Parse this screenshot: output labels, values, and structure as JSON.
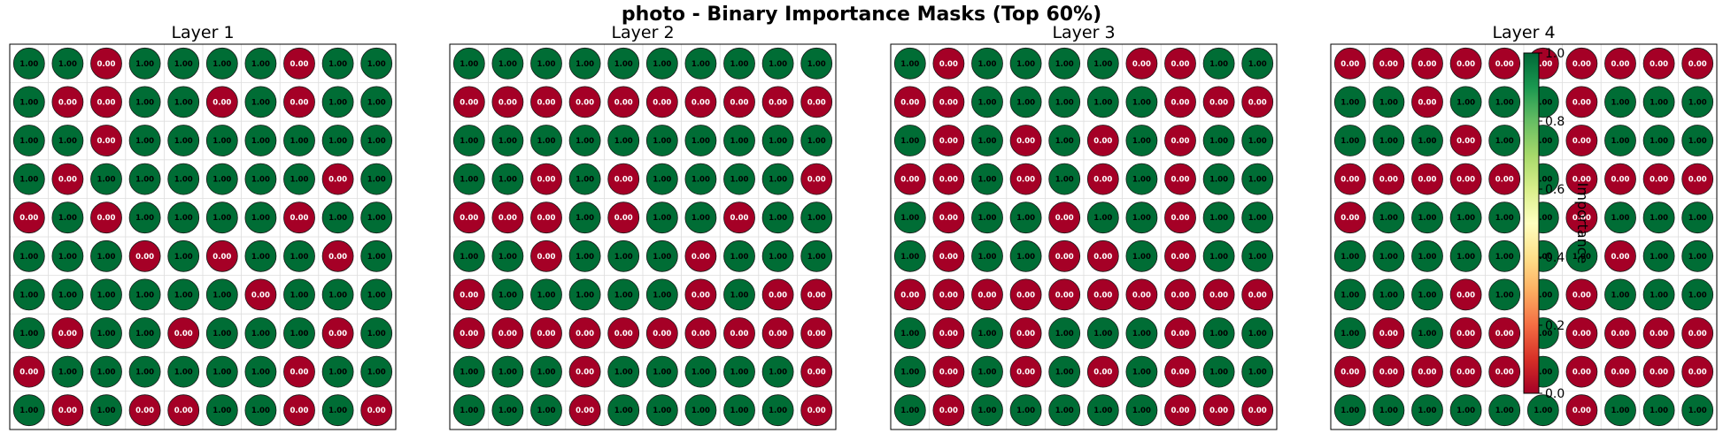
{
  "figure": {
    "title": "photo - Binary Importance Masks (Top 60%)"
  },
  "colors": {
    "important": "#006d35",
    "unimportant": "#a50026",
    "grid": "#dddddd",
    "frame": "#000000"
  },
  "colorbar": {
    "label": "Importance",
    "ticks": [
      "0.0",
      "0.2",
      "0.4",
      "0.6",
      "0.8",
      "1.0"
    ],
    "colormap": "RdYlGn",
    "range": [
      0,
      1
    ]
  },
  "chart_data": [
    {
      "type": "heatmap",
      "title": "Layer 1",
      "value_format": "0.00",
      "grid": [
        [
          1,
          1,
          0,
          1,
          1,
          1,
          1,
          0,
          1,
          1
        ],
        [
          1,
          0,
          0,
          1,
          1,
          0,
          1,
          0,
          1,
          1
        ],
        [
          1,
          1,
          0,
          1,
          1,
          1,
          1,
          1,
          1,
          1
        ],
        [
          1,
          0,
          1,
          1,
          1,
          1,
          1,
          1,
          0,
          1
        ],
        [
          0,
          1,
          0,
          1,
          1,
          1,
          1,
          0,
          1,
          1
        ],
        [
          1,
          1,
          1,
          0,
          1,
          0,
          1,
          1,
          0,
          1
        ],
        [
          1,
          1,
          1,
          1,
          1,
          1,
          0,
          1,
          1,
          1
        ],
        [
          1,
          0,
          1,
          1,
          0,
          1,
          1,
          1,
          0,
          1
        ],
        [
          0,
          1,
          1,
          1,
          1,
          1,
          1,
          0,
          1,
          1
        ],
        [
          1,
          0,
          1,
          0,
          0,
          1,
          1,
          0,
          1,
          0
        ]
      ]
    },
    {
      "type": "heatmap",
      "title": "Layer 2",
      "value_format": "0.00",
      "grid": [
        [
          1,
          1,
          1,
          1,
          1,
          1,
          1,
          1,
          1,
          1
        ],
        [
          0,
          0,
          0,
          0,
          0,
          0,
          0,
          0,
          0,
          0
        ],
        [
          1,
          1,
          1,
          1,
          1,
          1,
          1,
          1,
          1,
          1
        ],
        [
          1,
          1,
          0,
          1,
          0,
          1,
          1,
          1,
          1,
          0
        ],
        [
          0,
          0,
          0,
          1,
          0,
          1,
          1,
          0,
          1,
          1
        ],
        [
          1,
          1,
          0,
          1,
          1,
          1,
          0,
          1,
          1,
          1
        ],
        [
          0,
          1,
          1,
          1,
          1,
          1,
          0,
          1,
          0,
          0
        ],
        [
          0,
          0,
          0,
          0,
          0,
          0,
          0,
          0,
          0,
          0
        ],
        [
          1,
          1,
          1,
          0,
          1,
          1,
          1,
          1,
          1,
          0
        ],
        [
          1,
          1,
          1,
          0,
          1,
          1,
          1,
          1,
          1,
          0
        ]
      ]
    },
    {
      "type": "heatmap",
      "title": "Layer 3",
      "value_format": "0.00",
      "grid": [
        [
          1,
          0,
          1,
          1,
          1,
          1,
          0,
          0,
          1,
          1
        ],
        [
          0,
          0,
          1,
          1,
          1,
          1,
          1,
          0,
          0,
          0
        ],
        [
          1,
          0,
          1,
          0,
          1,
          0,
          1,
          0,
          1,
          1
        ],
        [
          0,
          0,
          1,
          0,
          1,
          0,
          1,
          0,
          1,
          1
        ],
        [
          1,
          0,
          1,
          1,
          0,
          1,
          1,
          0,
          1,
          1
        ],
        [
          1,
          0,
          1,
          1,
          0,
          0,
          1,
          0,
          1,
          1
        ],
        [
          0,
          0,
          0,
          0,
          0,
          0,
          0,
          0,
          0,
          0
        ],
        [
          1,
          0,
          1,
          0,
          1,
          1,
          1,
          0,
          1,
          1
        ],
        [
          1,
          0,
          1,
          0,
          1,
          0,
          1,
          0,
          1,
          1
        ],
        [
          1,
          0,
          1,
          1,
          1,
          1,
          1,
          0,
          0,
          0
        ]
      ]
    },
    {
      "type": "heatmap",
      "title": "Layer 4",
      "value_format": "0.00",
      "grid": [
        [
          0,
          0,
          0,
          0,
          0,
          0,
          0,
          0,
          0,
          0
        ],
        [
          1,
          1,
          0,
          1,
          1,
          1,
          0,
          1,
          1,
          1
        ],
        [
          1,
          1,
          1,
          0,
          1,
          1,
          0,
          1,
          1,
          1
        ],
        [
          0,
          0,
          0,
          0,
          0,
          1,
          0,
          0,
          0,
          0
        ],
        [
          0,
          1,
          1,
          1,
          1,
          1,
          0,
          1,
          1,
          1
        ],
        [
          1,
          1,
          1,
          1,
          1,
          1,
          1,
          0,
          1,
          1
        ],
        [
          1,
          1,
          1,
          0,
          1,
          1,
          0,
          1,
          1,
          1
        ],
        [
          1,
          0,
          1,
          0,
          0,
          1,
          0,
          0,
          0,
          0
        ],
        [
          0,
          0,
          0,
          0,
          0,
          1,
          0,
          0,
          0,
          0
        ],
        [
          1,
          1,
          1,
          1,
          1,
          1,
          0,
          1,
          1,
          1
        ]
      ]
    }
  ]
}
